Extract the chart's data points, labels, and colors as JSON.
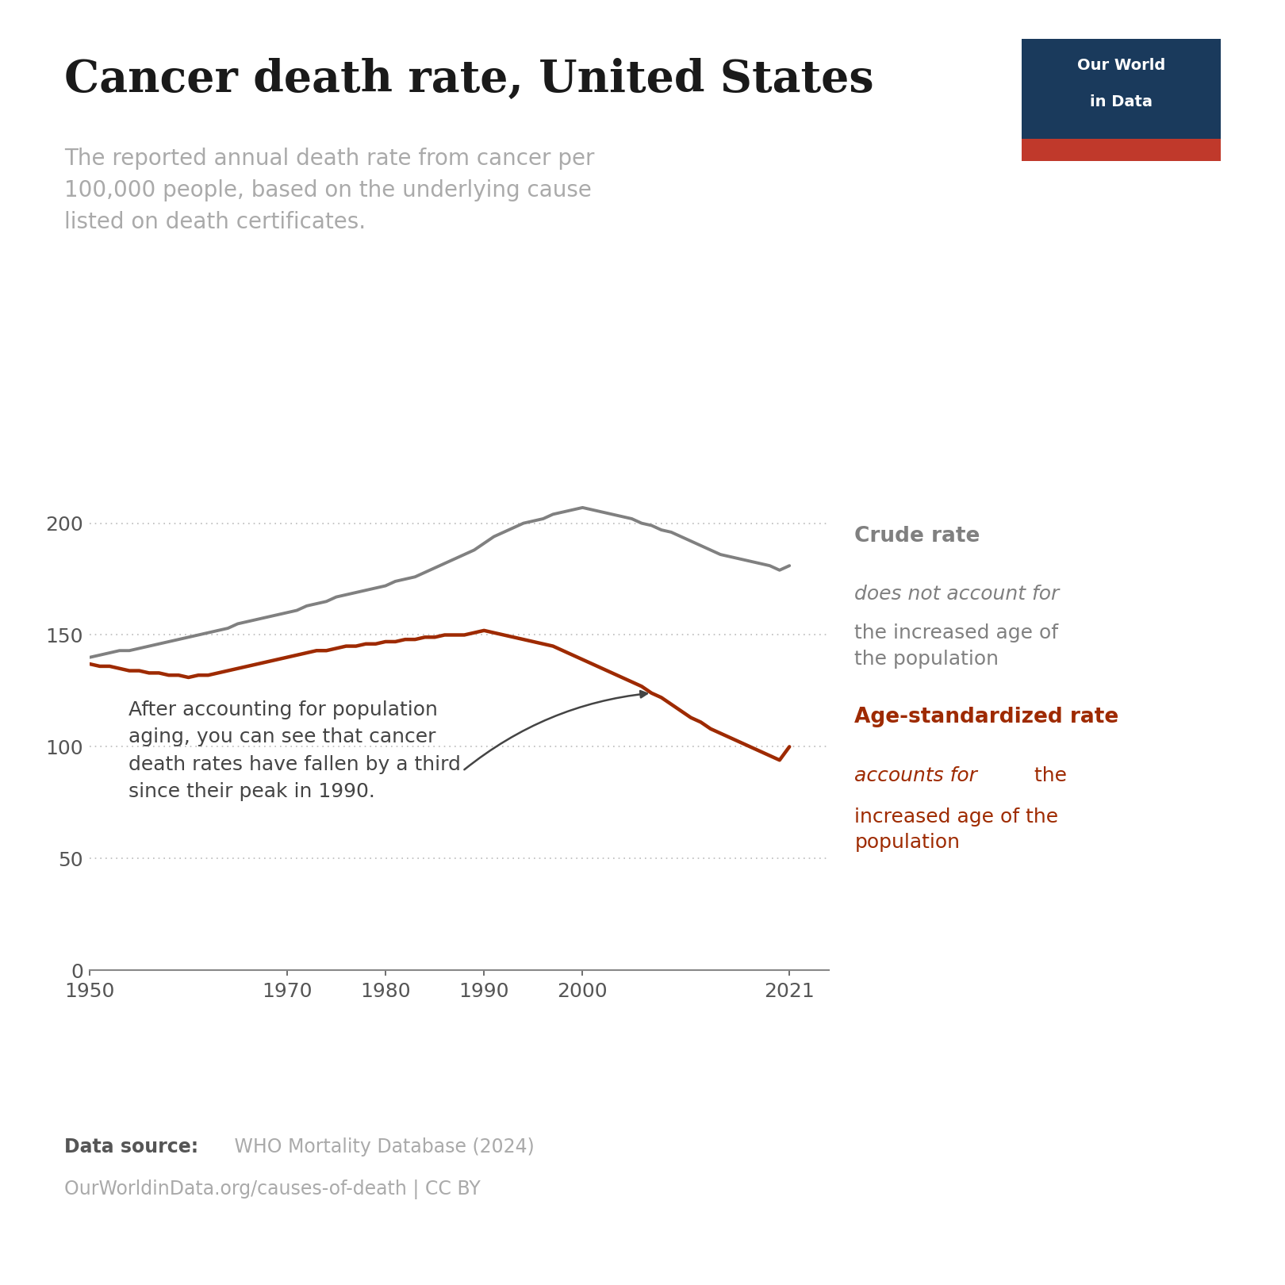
{
  "title": "Cancer death rate, United States",
  "subtitle": "The reported annual death rate from cancer per\n100,000 people, based on the underlying cause\nlisted on death certificates.",
  "background_color": "#ffffff",
  "title_color": "#1a1a1a",
  "subtitle_color": "#aaaaaa",
  "crude_color": "#808080",
  "age_std_color": "#9e2a00",
  "logo_bg_color": "#1a3a5c",
  "logo_red_color": "#c0392b",
  "annotation_text": "After accounting for population\naging, you can see that cancer\ndeath rates have fallen by a third\nsince their peak in 1990.",
  "crude_label_title": "Crude rate",
  "crude_label_sub_italic": "does not account for",
  "crude_label_sub_normal": "the increased age of\nthe population",
  "age_std_label_title": "Age-standardized rate",
  "age_std_label_sub_italic": "accounts for",
  "age_std_label_sub_normal": " the\nincreased age of the\npopulation",
  "xlim": [
    1950,
    2025
  ],
  "ylim": [
    0,
    230
  ],
  "xticks": [
    1950,
    1970,
    1980,
    1990,
    2000,
    2021
  ],
  "yticks": [
    0,
    50,
    100,
    150,
    200
  ],
  "crude_years": [
    1950,
    1951,
    1952,
    1953,
    1954,
    1955,
    1956,
    1957,
    1958,
    1959,
    1960,
    1961,
    1962,
    1963,
    1964,
    1965,
    1966,
    1967,
    1968,
    1969,
    1970,
    1971,
    1972,
    1973,
    1974,
    1975,
    1976,
    1977,
    1978,
    1979,
    1980,
    1981,
    1982,
    1983,
    1984,
    1985,
    1986,
    1987,
    1988,
    1989,
    1990,
    1991,
    1992,
    1993,
    1994,
    1995,
    1996,
    1997,
    1998,
    1999,
    2000,
    2001,
    2002,
    2003,
    2004,
    2005,
    2006,
    2007,
    2008,
    2009,
    2010,
    2011,
    2012,
    2013,
    2014,
    2015,
    2016,
    2017,
    2018,
    2019,
    2020,
    2021
  ],
  "crude_values": [
    140,
    141,
    142,
    143,
    143,
    144,
    145,
    146,
    147,
    148,
    149,
    150,
    151,
    152,
    153,
    155,
    156,
    157,
    158,
    159,
    160,
    161,
    163,
    164,
    165,
    167,
    168,
    169,
    170,
    171,
    172,
    174,
    175,
    176,
    178,
    180,
    182,
    184,
    186,
    188,
    191,
    194,
    196,
    198,
    200,
    201,
    202,
    204,
    205,
    206,
    207,
    206,
    205,
    204,
    203,
    202,
    200,
    199,
    197,
    196,
    194,
    192,
    190,
    188,
    186,
    185,
    184,
    183,
    182,
    181,
    179,
    181
  ],
  "age_std_years": [
    1950,
    1951,
    1952,
    1953,
    1954,
    1955,
    1956,
    1957,
    1958,
    1959,
    1960,
    1961,
    1962,
    1963,
    1964,
    1965,
    1966,
    1967,
    1968,
    1969,
    1970,
    1971,
    1972,
    1973,
    1974,
    1975,
    1976,
    1977,
    1978,
    1979,
    1980,
    1981,
    1982,
    1983,
    1984,
    1985,
    1986,
    1987,
    1988,
    1989,
    1990,
    1991,
    1992,
    1993,
    1994,
    1995,
    1996,
    1997,
    1998,
    1999,
    2000,
    2001,
    2002,
    2003,
    2004,
    2005,
    2006,
    2007,
    2008,
    2009,
    2010,
    2011,
    2012,
    2013,
    2014,
    2015,
    2016,
    2017,
    2018,
    2019,
    2020,
    2021
  ],
  "age_std_values": [
    137,
    136,
    136,
    135,
    134,
    134,
    133,
    133,
    132,
    132,
    131,
    132,
    132,
    133,
    134,
    135,
    136,
    137,
    138,
    139,
    140,
    141,
    142,
    143,
    143,
    144,
    145,
    145,
    146,
    146,
    147,
    147,
    148,
    148,
    149,
    149,
    150,
    150,
    150,
    151,
    152,
    151,
    150,
    149,
    148,
    147,
    146,
    145,
    143,
    141,
    139,
    137,
    135,
    133,
    131,
    129,
    127,
    124,
    122,
    119,
    116,
    113,
    111,
    108,
    106,
    104,
    102,
    100,
    98,
    96,
    94,
    100
  ]
}
